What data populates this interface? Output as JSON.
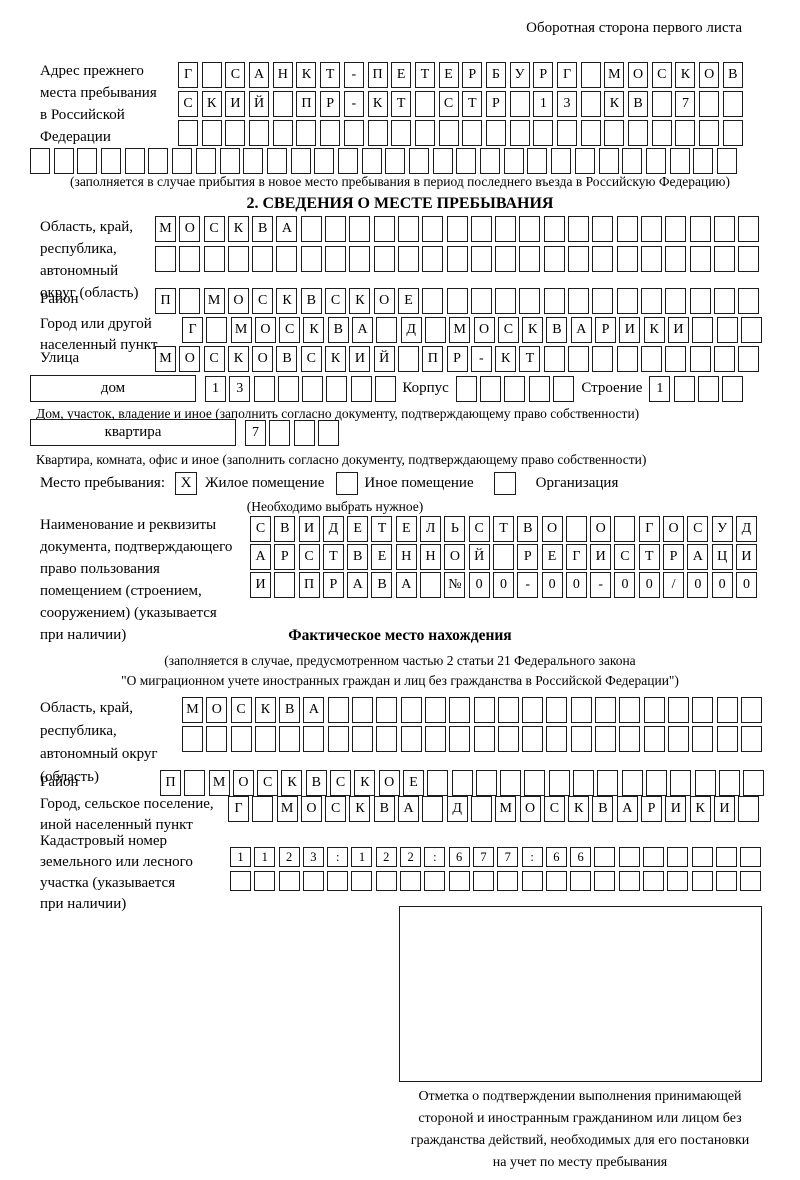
{
  "colors": {
    "border": "#1c1c1c",
    "text": "#000000",
    "background": "#ffffff"
  },
  "page_header": "Оборотная сторона первого листа",
  "prev_address": {
    "label_lines": [
      "Адрес прежнего",
      "места пребывания",
      "в Российской",
      "Федерации"
    ],
    "rows": {
      "r0": [
        "Г",
        "",
        "С",
        "А",
        "Н",
        "К",
        "Т",
        "-",
        "П",
        "Е",
        "Т",
        "Е",
        "Р",
        "Б",
        "У",
        "Р",
        "Г",
        "",
        "М",
        "О",
        "С",
        "К",
        "О",
        "В"
      ],
      "r1": [
        "С",
        "К",
        "И",
        "Й",
        "",
        "П",
        "Р",
        "-",
        "К",
        "Т",
        "",
        "С",
        "Т",
        "Р",
        "",
        "1",
        "3",
        "",
        "К",
        "В",
        "",
        "7",
        "",
        ""
      ],
      "r2": [
        "",
        "",
        "",
        "",
        "",
        "",
        "",
        "",
        "",
        "",
        "",
        "",
        "",
        "",
        "",
        "",
        "",
        "",
        "",
        "",
        "",
        "",
        "",
        ""
      ],
      "r3": [
        "",
        "",
        "",
        "",
        "",
        "",
        "",
        "",
        "",
        "",
        "",
        "",
        "",
        "",
        "",
        "",
        "",
        "",
        "",
        "",
        "",
        "",
        "",
        "",
        "",
        "",
        "",
        "",
        "",
        ""
      ]
    },
    "note": "(заполняется в случае прибытия в новое место пребывания в период последнего въезда в Российскую Федерацию)"
  },
  "section2": {
    "title": "2. СВЕДЕНИЯ О МЕСТЕ ПРЕБЫВАНИЯ",
    "region": {
      "label_lines": [
        "Область, край,",
        "республика,",
        "автономный",
        "округ (область)"
      ],
      "rows": {
        "r0": [
          "М",
          "О",
          "С",
          "К",
          "В",
          "А",
          "",
          "",
          "",
          "",
          "",
          "",
          "",
          "",
          "",
          "",
          "",
          "",
          "",
          "",
          "",
          "",
          "",
          "",
          ""
        ],
        "r1": [
          "",
          "",
          "",
          "",
          "",
          "",
          "",
          "",
          "",
          "",
          "",
          "",
          "",
          "",
          "",
          "",
          "",
          "",
          "",
          "",
          "",
          "",
          "",
          "",
          ""
        ]
      }
    },
    "district": {
      "label": "Район",
      "cells": [
        "П",
        "",
        "М",
        "О",
        "С",
        "К",
        "В",
        "С",
        "К",
        "О",
        "Е",
        "",
        "",
        "",
        "",
        "",
        "",
        "",
        "",
        "",
        "",
        "",
        "",
        "",
        ""
      ]
    },
    "city": {
      "label_lines": [
        "Город или другой",
        "населенный пункт"
      ],
      "cells": [
        "Г",
        "",
        "М",
        "О",
        "С",
        "К",
        "В",
        "А",
        "",
        "Д",
        "",
        "М",
        "О",
        "С",
        "К",
        "В",
        "А",
        "Р",
        "И",
        "К",
        "И",
        "",
        "",
        ""
      ]
    },
    "street": {
      "label": "Улица",
      "cells": [
        "М",
        "О",
        "С",
        "К",
        "О",
        "В",
        "С",
        "К",
        "И",
        "Й",
        "",
        "П",
        "Р",
        "-",
        "К",
        "Т",
        "",
        "",
        "",
        "",
        "",
        "",
        "",
        "",
        ""
      ]
    },
    "house": {
      "box_label": "дом",
      "cells": [
        "1",
        "3",
        "",
        "",
        "",
        "",
        "",
        ""
      ],
      "korpus_label": "Корпус",
      "korpus_cells": [
        "",
        "",
        "",
        "",
        ""
      ],
      "stroenie_label": "Строение",
      "stroenie_cells": [
        "1",
        "",
        "",
        ""
      ]
    },
    "house_note": "Дом, участок, владение и иное (заполнить согласно документу, подтверждающему право собственности)",
    "apartment": {
      "box_label": "квартира",
      "cells": [
        "7",
        "",
        "",
        ""
      ]
    },
    "apartment_note": "Квартира, комната, офис и иное (заполнить согласно документу, подтверждающему право собственности)",
    "stay_type": {
      "label": "Место пребывания:",
      "options": [
        {
          "mark": "X",
          "label": "Жилое помещение"
        },
        {
          "mark": "",
          "label": "Иное помещение"
        },
        {
          "mark": "",
          "label": "Организация"
        }
      ],
      "note": "(Необходимо выбрать нужное)"
    },
    "document": {
      "label_lines": [
        "Наименование и реквизиты",
        "документа, подтверждающего",
        "право пользования",
        "помещением (строением,",
        "сооружением) (указывается",
        "при наличии)"
      ],
      "rows": {
        "r0": [
          "С",
          "В",
          "И",
          "Д",
          "Е",
          "Т",
          "Е",
          "Л",
          "Ь",
          "С",
          "Т",
          "В",
          "О",
          "",
          "О",
          "",
          "Г",
          "О",
          "С",
          "У",
          "Д"
        ],
        "r1": [
          "А",
          "Р",
          "С",
          "Т",
          "В",
          "Е",
          "Н",
          "Н",
          "О",
          "Й",
          "",
          "Р",
          "Е",
          "Г",
          "И",
          "С",
          "Т",
          "Р",
          "А",
          "Ц",
          "И"
        ],
        "r2": [
          "И",
          "",
          "П",
          "Р",
          "А",
          "В",
          "А",
          "",
          "№",
          "0",
          "0",
          "-",
          "0",
          "0",
          "-",
          "0",
          "0",
          "/",
          "0",
          "0",
          "0"
        ]
      }
    }
  },
  "actual_location": {
    "title": "Фактическое место нахождения",
    "subtitle_lines": [
      "(заполняется в случае, предусмотренном частью 2 статьи 21 Федерального закона",
      "\"О миграционном учете иностранных граждан и лиц без гражданства в Российской Федерации\")"
    ],
    "region": {
      "label_lines": [
        "Область, край,",
        "республика,",
        "автономный округ",
        "(область)"
      ],
      "rows": {
        "r0": [
          "М",
          "О",
          "С",
          "К",
          "В",
          "А",
          "",
          "",
          "",
          "",
          "",
          "",
          "",
          "",
          "",
          "",
          "",
          "",
          "",
          "",
          "",
          "",
          "",
          ""
        ],
        "r1": [
          "",
          "",
          "",
          "",
          "",
          "",
          "",
          "",
          "",
          "",
          "",
          "",
          "",
          "",
          "",
          "",
          "",
          "",
          "",
          "",
          "",
          "",
          "",
          ""
        ]
      }
    },
    "district": {
      "label": "Район",
      "cells": [
        "П",
        "",
        "М",
        "О",
        "С",
        "К",
        "В",
        "С",
        "К",
        "О",
        "Е",
        "",
        "",
        "",
        "",
        "",
        "",
        "",
        "",
        "",
        "",
        "",
        "",
        "",
        ""
      ]
    },
    "city": {
      "label_lines": [
        "Город, сельское поселение,",
        "иной населенный пункт"
      ],
      "cells": [
        "Г",
        "",
        "М",
        "О",
        "С",
        "К",
        "В",
        "А",
        "",
        "Д",
        "",
        "М",
        "О",
        "С",
        "К",
        "В",
        "А",
        "Р",
        "И",
        "К",
        "И",
        ""
      ]
    },
    "cadastre": {
      "label_lines": [
        "Кадастровый номер",
        "земельного или лесного",
        "участка (указывается",
        "при наличии)"
      ],
      "rows": {
        "r0": [
          "1",
          "1",
          "2",
          "3",
          ":",
          "1",
          "2",
          "2",
          ":",
          "6",
          "7",
          "7",
          ":",
          "6",
          "6",
          "",
          "",
          "",
          "",
          "",
          "",
          ""
        ],
        "r1": [
          "",
          "",
          "",
          "",
          "",
          "",
          "",
          "",
          "",
          "",
          "",
          "",
          "",
          "",
          "",
          "",
          "",
          "",
          "",
          "",
          "",
          ""
        ]
      }
    }
  },
  "stamp": {
    "caption_lines": [
      "Отметка о подтверждении выполнения принимающей",
      "стороной и иностранным гражданином или лицом без",
      "гражданства действий, необходимых для его постановки",
      "на учет по месту пребывания"
    ]
  }
}
